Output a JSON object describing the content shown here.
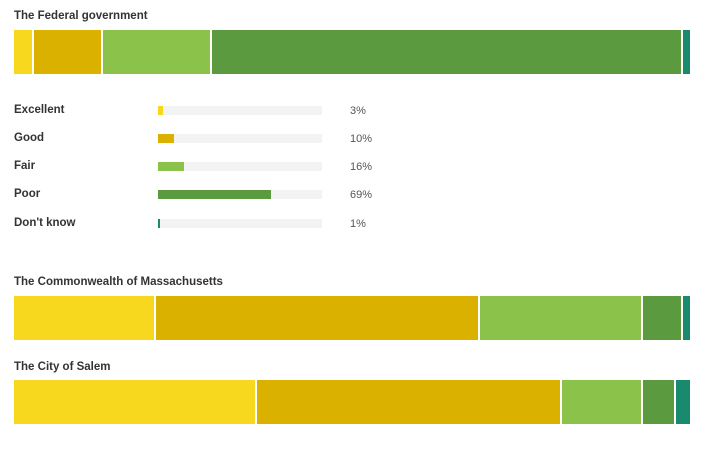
{
  "legend_categories": [
    "Excellent",
    "Good",
    "Fair",
    "Poor",
    "Don't know"
  ],
  "colors": [
    "#f8d81e",
    "#dbb100",
    "#8bc34a",
    "#5c9a3f",
    "#1a8a6f"
  ],
  "chart_data": [
    {
      "type": "bar",
      "orientation": "horizontal-stacked",
      "title": "The Federal government",
      "categories": [
        "Excellent",
        "Good",
        "Fair",
        "Poor",
        "Don't know"
      ],
      "values": [
        3,
        10,
        16,
        69,
        1
      ],
      "value_labels": [
        "3%",
        "10%",
        "16%",
        "69%",
        "1%"
      ],
      "unit": "%"
    },
    {
      "type": "bar",
      "orientation": "horizontal-stacked",
      "title": "The Commonwealth of Massachusetts",
      "categories": [
        "Excellent",
        "Good",
        "Fair",
        "Poor",
        "Don't know"
      ],
      "values": [
        21,
        48,
        24,
        6,
        1
      ],
      "unit": "%"
    },
    {
      "type": "bar",
      "orientation": "horizontal-stacked",
      "title": "The City of Salem",
      "categories": [
        "Excellent",
        "Good",
        "Fair",
        "Poor",
        "Don't know"
      ],
      "values": [
        36,
        45,
        12,
        5,
        2
      ],
      "unit": "%"
    }
  ]
}
